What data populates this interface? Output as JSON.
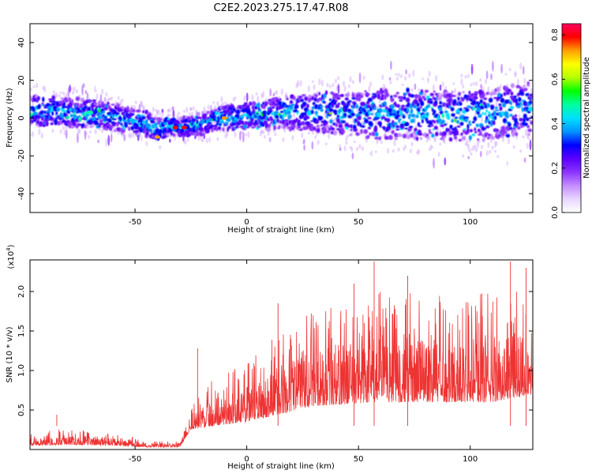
{
  "figure": {
    "title": "C2E2.2023.275.17.47.R08"
  },
  "chart_data": [
    {
      "type": "heatmap",
      "xlabel": "Height of straight line (km)",
      "ylabel": "Frequency (Hz)",
      "xlim": [
        -97,
        128
      ],
      "ylim": [
        -50,
        50
      ],
      "xticks": [
        -50,
        0,
        50,
        100
      ],
      "yticks": [
        -40,
        -20,
        0,
        20,
        40
      ],
      "colorbar": {
        "label": "Normalized spectral amplitude",
        "range": [
          0,
          0.85
        ],
        "ticks": [
          "0.0",
          "0.2",
          "0.4",
          "0.6",
          "0.8"
        ],
        "colormap": [
          "#ffffff",
          "#e8d6ff",
          "#c38cff",
          "#8c33ff",
          "#5a00ff",
          "#0000ff",
          "#0096ff",
          "#00e0ff",
          "#00ffa0",
          "#00ff00",
          "#b4ff00",
          "#ffff00",
          "#ffa000",
          "#ff0000",
          "#ff0060"
        ]
      },
      "center_frequency_trend": [
        {
          "x": -95,
          "y": 4
        },
        {
          "x": -80,
          "y": 3
        },
        {
          "x": -65,
          "y": 2
        },
        {
          "x": -55,
          "y": -1
        },
        {
          "x": -45,
          "y": -3
        },
        {
          "x": -40,
          "y": -6
        },
        {
          "x": -35,
          "y": -4
        },
        {
          "x": -30,
          "y": -5
        },
        {
          "x": -20,
          "y": -3
        },
        {
          "x": -10,
          "y": 0
        },
        {
          "x": 0,
          "y": 1
        },
        {
          "x": 10,
          "y": 2
        },
        {
          "x": 20,
          "y": 3
        },
        {
          "x": 30,
          "y": 3
        },
        {
          "x": 40,
          "y": 3
        },
        {
          "x": 50,
          "y": 2
        },
        {
          "x": 60,
          "y": 2
        },
        {
          "x": 70,
          "y": 2
        },
        {
          "x": 80,
          "y": 2
        },
        {
          "x": 90,
          "y": 1
        },
        {
          "x": 100,
          "y": 1
        },
        {
          "x": 110,
          "y": 2
        },
        {
          "x": 120,
          "y": 4
        },
        {
          "x": 128,
          "y": 5
        }
      ],
      "band_halfwidth_hz": [
        {
          "x": -95,
          "y": 8
        },
        {
          "x": -50,
          "y": 7
        },
        {
          "x": -30,
          "y": 5
        },
        {
          "x": 0,
          "y": 7
        },
        {
          "x": 30,
          "y": 10
        },
        {
          "x": 60,
          "y": 13
        },
        {
          "x": 90,
          "y": 13
        },
        {
          "x": 128,
          "y": 14
        }
      ],
      "peak_amplitude_points": [
        {
          "x": -32,
          "y": -5,
          "v": 0.8
        },
        {
          "x": -28,
          "y": -5,
          "v": 0.8
        },
        {
          "x": -10,
          "y": 0,
          "v": 0.75
        },
        {
          "x": -40,
          "y": -10,
          "v": 0.7
        },
        {
          "x": -70,
          "y": 3,
          "v": 0.5
        }
      ]
    },
    {
      "type": "line",
      "xlabel": "Height of straight line (km)",
      "ylabel": "SNR (10 * v/v)",
      "yexponent_label": "(x10",
      "yexponent_power": "4",
      "yexponent_close": ")",
      "xlim": [
        -97,
        128
      ],
      "ylim": [
        0,
        2.4
      ],
      "xticks": [
        -50,
        0,
        50,
        100
      ],
      "yticks": [
        "0.5",
        "1.0",
        "1.5",
        "2.0"
      ],
      "color": "#ee3333",
      "envelope": [
        {
          "x": -97,
          "base": 0.05,
          "peak": 0.2
        },
        {
          "x": -80,
          "base": 0.06,
          "peak": 0.28
        },
        {
          "x": -60,
          "base": 0.05,
          "peak": 0.2
        },
        {
          "x": -45,
          "base": 0.03,
          "peak": 0.12
        },
        {
          "x": -30,
          "base": 0.03,
          "peak": 0.1
        },
        {
          "x": -25,
          "base": 0.25,
          "peak": 0.55
        },
        {
          "x": -15,
          "base": 0.3,
          "peak": 0.9
        },
        {
          "x": 0,
          "base": 0.35,
          "peak": 1.1
        },
        {
          "x": 15,
          "base": 0.45,
          "peak": 1.5
        },
        {
          "x": 30,
          "base": 0.55,
          "peak": 1.8
        },
        {
          "x": 60,
          "base": 0.6,
          "peak": 2.0
        },
        {
          "x": 90,
          "base": 0.6,
          "peak": 1.95
        },
        {
          "x": 110,
          "base": 0.6,
          "peak": 2.0
        },
        {
          "x": 128,
          "base": 0.7,
          "peak": 2.0
        }
      ],
      "spikes": [
        {
          "x": -85,
          "y": 0.44
        },
        {
          "x": -22,
          "y": 1.28
        },
        {
          "x": 14,
          "y": 1.85
        },
        {
          "x": 48,
          "y": 2.1
        },
        {
          "x": 57,
          "y": 2.38
        },
        {
          "x": 72,
          "y": 2.2
        },
        {
          "x": 118,
          "y": 2.38
        },
        {
          "x": 125,
          "y": 2.3
        }
      ]
    }
  ]
}
